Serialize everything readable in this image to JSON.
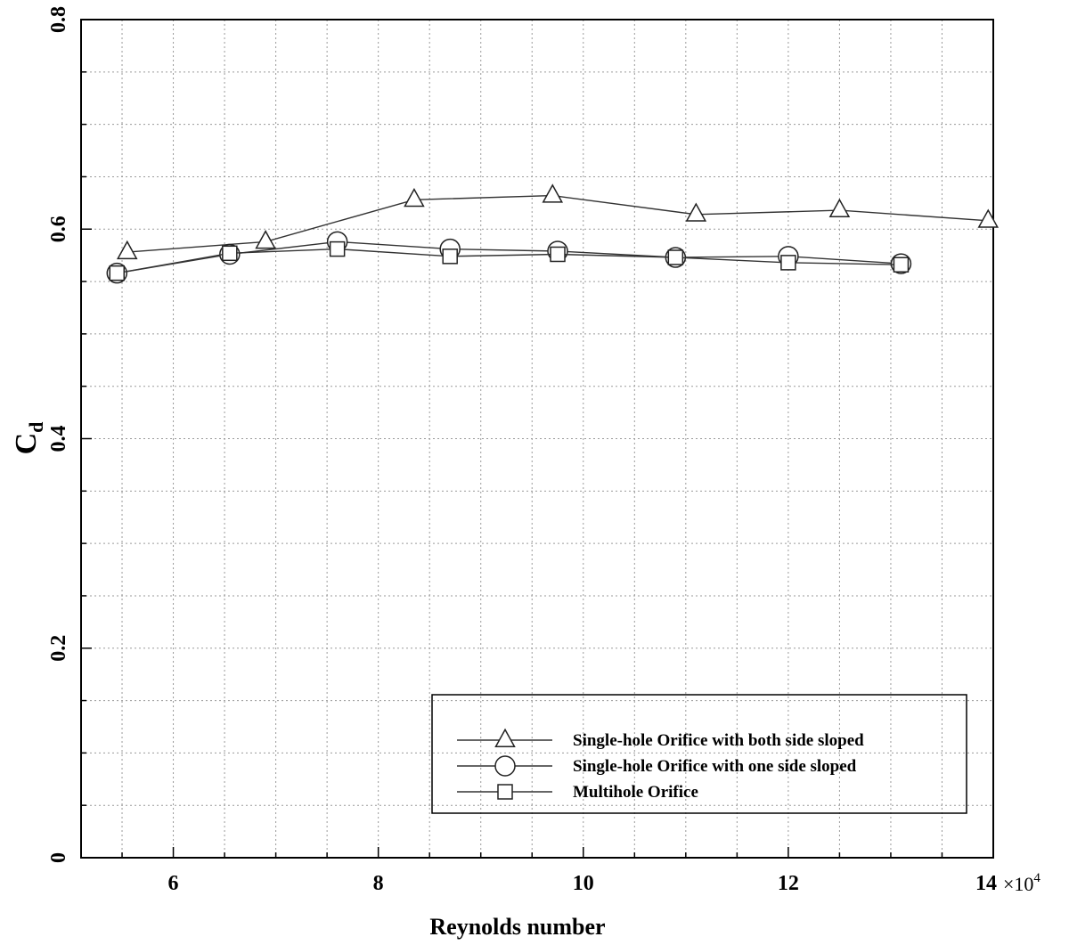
{
  "chart_data": {
    "type": "line",
    "xlabel": "Reynolds number",
    "ylabel": "C",
    "ylabel_sub": "d",
    "x_multiplier_label": "×10",
    "x_multiplier_exp": "4",
    "xlim": [
      5.1,
      14
    ],
    "ylim": [
      0,
      0.8
    ],
    "x_ticks": [
      6,
      8,
      10,
      12,
      14
    ],
    "y_ticks": [
      0,
      0.2,
      0.4,
      0.6,
      0.8
    ],
    "x_tick_labels": [
      "6",
      "8",
      "10",
      "12",
      "14"
    ],
    "y_tick_labels": [
      "0",
      "0.2",
      "0.4",
      "0.6",
      "0.8"
    ],
    "x_minor_step": 0.5,
    "y_minor_step": 0.05,
    "grid": true,
    "legend_position": "bottom-right",
    "series": [
      {
        "name": "Single-hole Orifice with both side sloped",
        "marker": "triangle",
        "x": [
          5.55,
          6.9,
          8.35,
          9.7,
          11.1,
          12.5,
          13.95
        ],
        "y": [
          0.578,
          0.588,
          0.628,
          0.632,
          0.614,
          0.618,
          0.608
        ]
      },
      {
        "name": "Single-hole Orifice with one side sloped",
        "marker": "circle",
        "x": [
          5.45,
          6.55,
          7.6,
          8.7,
          9.75,
          10.9,
          12.0,
          13.1
        ],
        "y": [
          0.558,
          0.576,
          0.588,
          0.581,
          0.579,
          0.573,
          0.574,
          0.567
        ]
      },
      {
        "name": "Multihole Orifice",
        "marker": "square",
        "x": [
          5.45,
          6.55,
          7.6,
          8.7,
          9.75,
          10.9,
          12.0,
          13.1
        ],
        "y": [
          0.558,
          0.577,
          0.581,
          0.574,
          0.576,
          0.573,
          0.568,
          0.566
        ]
      }
    ]
  }
}
